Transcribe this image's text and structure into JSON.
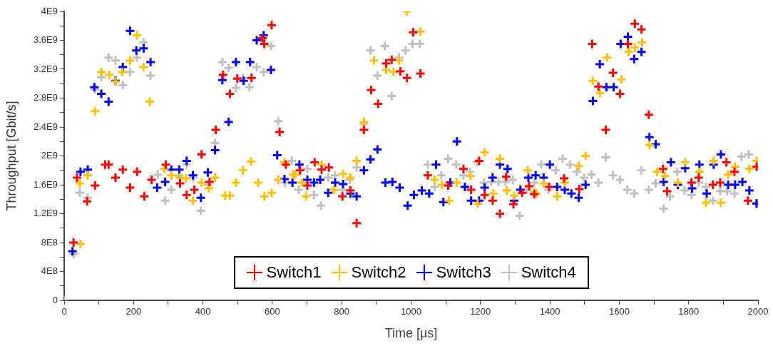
{
  "chart_data": {
    "type": "scatter",
    "xlabel": "Time [µs]",
    "ylabel": "Throughput [Gbit/s]",
    "marker": "cross",
    "grid": false,
    "legend": "bottom",
    "xlim": [
      0,
      2000
    ],
    "xticks": [
      0,
      {
        "value": 100,
        "label": null
      },
      200,
      {
        "value": 300,
        "label": null
      },
      400,
      {
        "value": 500,
        "label": null
      },
      600,
      {
        "value": 700,
        "label": null
      },
      800,
      {
        "value": 900,
        "label": null
      },
      1000,
      {
        "value": 1100,
        "label": null
      },
      1200,
      {
        "value": 1300,
        "label": null
      },
      1400,
      {
        "value": 1500,
        "label": null
      },
      1600,
      {
        "value": 1700,
        "label": null
      },
      1800,
      {
        "value": 1900,
        "label": null
      },
      2000
    ],
    "ylim": [
      0,
      4000000000
    ],
    "yticks": [
      0,
      {
        "value": 200000000,
        "label": null
      },
      {
        "value": 400000000,
        "label": "4E8"
      },
      {
        "value": 600000000,
        "label": null
      },
      {
        "value": 800000000,
        "label": "8E8"
      },
      {
        "value": 1000000000,
        "label": null
      },
      {
        "value": 1200000000,
        "label": "1.2E9"
      },
      {
        "value": 1400000000,
        "label": null
      },
      {
        "value": 1600000000,
        "label": "1.6E9"
      },
      {
        "value": 1800000000,
        "label": null
      },
      {
        "value": 2000000000,
        "label": "2E9"
      },
      {
        "value": 2200000000,
        "label": null
      },
      {
        "value": 2400000000,
        "label": "2.4E9"
      },
      {
        "value": 2600000000,
        "label": null
      },
      {
        "value": 2800000000,
        "label": "2.8E9"
      },
      {
        "value": 3000000000,
        "label": null
      },
      {
        "value": 3200000000,
        "label": "3.2E9"
      },
      {
        "value": 3400000000,
        "label": null
      },
      {
        "value": 3600000000,
        "label": "3.6E9"
      },
      {
        "value": 3800000000,
        "label": null
      },
      {
        "value": 4000000000,
        "label": "4E9"
      }
    ],
    "series": [
      {
        "name": "Switch1",
        "color": "#ff0000",
        "x": [
          27,
          37,
          66,
          89,
          118,
          128,
          148,
          169,
          190,
          210,
          231,
          252,
          293,
          334,
          353,
          375,
          396,
          419,
          437,
          458,
          478,
          499,
          540,
          571,
          577,
          598,
          621,
          639,
          680,
          701,
          722,
          742,
          763,
          802,
          825,
          843,
          864,
          885,
          905,
          928,
          944,
          969,
          988,
          1006,
          1027,
          1048,
          1107,
          1151,
          1173,
          1196,
          1212,
          1235,
          1256,
          1274,
          1295,
          1320,
          1340,
          1355,
          1398,
          1441,
          1485,
          1522,
          1540,
          1561,
          1582,
          1602,
          1625,
          1645,
          1664,
          1685,
          1726,
          1738,
          1808,
          1829,
          1870,
          1891,
          1909,
          1932,
          1971,
          1996
        ],
        "values": [
          800000000.0,
          1700000000.0,
          1370000000.0,
          1590000000.0,
          1880000000.0,
          1880000000.0,
          1700000000.0,
          1810000000.0,
          1560000000.0,
          1780000000.0,
          1440000000.0,
          1670000000.0,
          1880000000.0,
          1620000000.0,
          1460000000.0,
          1530000000.0,
          2020000000.0,
          1640000000.0,
          2360000000.0,
          3120000000.0,
          2860000000.0,
          3070000000.0,
          3080000000.0,
          3630000000.0,
          3550000000.0,
          3810000000.0,
          2330000000.0,
          1880000000.0,
          1800000000.0,
          1590000000.0,
          1910000000.0,
          1810000000.0,
          1840000000.0,
          1440000000.0,
          1520000000.0,
          1070000000.0,
          2360000000.0,
          2910000000.0,
          2720000000.0,
          3280000000.0,
          3330000000.0,
          3170000000.0,
          3080000000.0,
          3710000000.0,
          3140000000.0,
          1730000000.0,
          1590000000.0,
          1820000000.0,
          1530000000.0,
          1930000000.0,
          1460000000.0,
          1380000000.0,
          1200000000.0,
          1710000000.0,
          1330000000.0,
          1490000000.0,
          1580000000.0,
          1470000000.0,
          1570000000.0,
          1690000000.0,
          1540000000.0,
          3550000000.0,
          2960000000.0,
          2360000000.0,
          3150000000.0,
          2860000000.0,
          3550000000.0,
          3830000000.0,
          3750000000.0,
          2570000000.0,
          1820000000.0,
          1510000000.0,
          1630000000.0,
          1700000000.0,
          1600000000.0,
          1630000000.0,
          1910000000.0,
          1780000000.0,
          1380000000.0,
          1850000000.0
        ]
      },
      {
        "name": "Switch2",
        "color": "#ffc000",
        "x": [
          45,
          47,
          68,
          89,
          107,
          130,
          148,
          167,
          190,
          210,
          229,
          247,
          289,
          309,
          334,
          351,
          371,
          396,
          417,
          435,
          464,
          478,
          495,
          515,
          538,
          559,
          577,
          598,
          617,
          635,
          660,
          666,
          685,
          697,
          742,
          777,
          804,
          825,
          843,
          864,
          893,
          928,
          949,
          965,
          988,
          1027,
          1068,
          1089,
          1109,
          1132,
          1171,
          1192,
          1212,
          1237,
          1256,
          1276,
          1297,
          1336,
          1355,
          1361,
          1382,
          1421,
          1443,
          1483,
          1503,
          1524,
          1544,
          1565,
          1606,
          1627,
          1645,
          1666,
          1687,
          1709,
          1732,
          1769,
          1790,
          1831,
          1850,
          1872,
          1893,
          1914,
          1934,
          1975,
          1996
        ],
        "values": [
          1620000000.0,
          780000000.0,
          1730000000.0,
          2620000000.0,
          3160000000.0,
          3120000000.0,
          3030000000.0,
          3160000000.0,
          3320000000.0,
          3670000000.0,
          3230000000.0,
          2750000000.0,
          1820000000.0,
          1730000000.0,
          1700000000.0,
          1690000000.0,
          1380000000.0,
          1630000000.0,
          1550000000.0,
          1700000000.0,
          1450000000.0,
          1450000000.0,
          1630000000.0,
          1800000000.0,
          1920000000.0,
          1630000000.0,
          1440000000.0,
          1490000000.0,
          1670000000.0,
          1910000000.0,
          1740000000.0,
          1740000000.0,
          1630000000.0,
          1440000000.0,
          1880000000.0,
          1530000000.0,
          1750000000.0,
          1700000000.0,
          1930000000.0,
          2470000000.0,
          3320000000.0,
          3190000000.0,
          3160000000.0,
          3320000000.0,
          4000000000.0,
          3720000000.0,
          1670000000.0,
          1600000000.0,
          1380000000.0,
          1630000000.0,
          1720000000.0,
          1340000000.0,
          2050000000.0,
          1480000000.0,
          1960000000.0,
          1520000000.0,
          1450000000.0,
          1800000000.0,
          1500000000.0,
          1480000000.0,
          1620000000.0,
          1440000000.0,
          1630000000.0,
          1860000000.0,
          2000000000.0,
          3040000000.0,
          2870000000.0,
          3360000000.0,
          3060000000.0,
          3440000000.0,
          3500000000.0,
          3570000000.0,
          2150000000.0,
          1780000000.0,
          1720000000.0,
          1630000000.0,
          1910000000.0,
          1780000000.0,
          1350000000.0,
          1930000000.0,
          1350000000.0,
          1740000000.0,
          1850000000.0,
          1820000000.0,
          1930000000.0
        ]
      },
      {
        "name": "Switch3",
        "color": "#0000ff",
        "x": [
          24,
          47,
          68,
          87,
          107,
          128,
          148,
          169,
          190,
          208,
          229,
          249,
          268,
          291,
          309,
          332,
          353,
          371,
          394,
          414,
          435,
          456,
          474,
          495,
          517,
          536,
          555,
          575,
          596,
          614,
          635,
          658,
          678,
          701,
          720,
          738,
          761,
          781,
          804,
          825,
          843,
          864,
          883,
          903,
          926,
          946,
          967,
          990,
          1008,
          1031,
          1052,
          1072,
          1093,
          1113,
          1132,
          1155,
          1173,
          1196,
          1212,
          1235,
          1256,
          1278,
          1297,
          1315,
          1338,
          1359,
          1382,
          1400,
          1421,
          1443,
          1462,
          1483,
          1503,
          1524,
          1544,
          1563,
          1584,
          1604,
          1625,
          1643,
          1664,
          1687,
          1705,
          1728,
          1749,
          1769,
          1790,
          1810,
          1831,
          1852,
          1872,
          1893,
          1914,
          1934,
          1955,
          1975,
          1996
        ],
        "values": [
          680000000.0,
          1780000000.0,
          1810000000.0,
          2950000000.0,
          2860000000.0,
          2750000000.0,
          3040000000.0,
          3230000000.0,
          3730000000.0,
          3460000000.0,
          3490000000.0,
          3300000000.0,
          1560000000.0,
          1640000000.0,
          1810000000.0,
          1810000000.0,
          1930000000.0,
          1730000000.0,
          1420000000.0,
          1770000000.0,
          2080000000.0,
          3050000000.0,
          2470000000.0,
          3300000000.0,
          3040000000.0,
          3300000000.0,
          3600000000.0,
          3670000000.0,
          3190000000.0,
          2010000000.0,
          1680000000.0,
          1630000000.0,
          1880000000.0,
          1670000000.0,
          1630000000.0,
          1670000000.0,
          1490000000.0,
          1630000000.0,
          1610000000.0,
          1480000000.0,
          1440000000.0,
          1800000000.0,
          1950000000.0,
          2090000000.0,
          1630000000.0,
          1640000000.0,
          1560000000.0,
          1310000000.0,
          1460000000.0,
          1520000000.0,
          1480000000.0,
          1880000000.0,
          1360000000.0,
          1630000000.0,
          2200000000.0,
          1570000000.0,
          1380000000.0,
          1380000000.0,
          1560000000.0,
          1700000000.0,
          1880000000.0,
          1820000000.0,
          1380000000.0,
          1530000000.0,
          1700000000.0,
          1730000000.0,
          1700000000.0,
          1880000000.0,
          1570000000.0,
          1530000000.0,
          1480000000.0,
          1420000000.0,
          1600000000.0,
          2760000000.0,
          3270000000.0,
          2950000000.0,
          2950000000.0,
          3550000000.0,
          3650000000.0,
          3340000000.0,
          3440000000.0,
          2260000000.0,
          2160000000.0,
          1640000000.0,
          1910000000.0,
          1600000000.0,
          1830000000.0,
          1550000000.0,
          1880000000.0,
          1480000000.0,
          1880000000.0,
          2020000000.0,
          1600000000.0,
          1600000000.0,
          1640000000.0,
          1520000000.0,
          1340000000.0
        ]
      },
      {
        "name": "Switch4",
        "color": "#c0c0c0",
        "x": [
          0,
          27,
          45,
          68,
          89,
          107,
          128,
          148,
          169,
          190,
          210,
          229,
          249,
          270,
          291,
          309,
          332,
          353,
          373,
          394,
          414,
          435,
          456,
          474,
          495,
          515,
          534,
          555,
          575,
          596,
          617,
          637,
          656,
          676,
          701,
          720,
          740,
          761,
          781,
          802,
          823,
          843,
          864,
          883,
          903,
          924,
          944,
          965,
          984,
          1004,
          1025,
          1048,
          1068,
          1087,
          1107,
          1130,
          1151,
          1169,
          1190,
          1210,
          1231,
          1252,
          1272,
          1293,
          1313,
          1334,
          1355,
          1375,
          1396,
          1417,
          1437,
          1458,
          1478,
          1499,
          1520,
          1540,
          1561,
          1582,
          1602,
          1623,
          1643,
          1664,
          1685,
          1705,
          1728,
          1746,
          1767,
          1788,
          1808,
          1829,
          1850,
          1870,
          1891,
          1911,
          1932,
          1952,
          1973,
          1994
        ],
        "values": [
          0,
          640000000.0,
          1490000000.0,
          1420000000.0,
          2920000000.0,
          3090000000.0,
          3360000000.0,
          3320000000.0,
          2980000000.0,
          3160000000.0,
          3360000000.0,
          3570000000.0,
          3110000000.0,
          1740000000.0,
          1380000000.0,
          1530000000.0,
          1730000000.0,
          1880000000.0,
          1700000000.0,
          1240000000.0,
          1600000000.0,
          2180000000.0,
          3300000000.0,
          3220000000.0,
          2940000000.0,
          3080000000.0,
          2950000000.0,
          3230000000.0,
          3160000000.0,
          3520000000.0,
          2480000000.0,
          1630000000.0,
          1930000000.0,
          1530000000.0,
          1820000000.0,
          1460000000.0,
          1310000000.0,
          1700000000.0,
          1730000000.0,
          1530000000.0,
          1670000000.0,
          1840000000.0,
          2440000000.0,
          3460000000.0,
          3110000000.0,
          3520000000.0,
          2830000000.0,
          3360000000.0,
          3460000000.0,
          3550000000.0,
          3550000000.0,
          1880000000.0,
          1570000000.0,
          1730000000.0,
          1960000000.0,
          1880000000.0,
          1730000000.0,
          1780000000.0,
          1910000000.0,
          1630000000.0,
          1640000000.0,
          1640000000.0,
          1640000000.0,
          1670000000.0,
          1170000000.0,
          1530000000.0,
          1630000000.0,
          1880000000.0,
          1530000000.0,
          1800000000.0,
          1960000000.0,
          1880000000.0,
          1780000000.0,
          1700000000.0,
          1740000000.0,
          1630000000.0,
          1980000000.0,
          1730000000.0,
          1670000000.0,
          1530000000.0,
          1480000000.0,
          1800000000.0,
          1530000000.0,
          1620000000.0,
          1270000000.0,
          1440000000.0,
          1780000000.0,
          1520000000.0,
          1460000000.0,
          1630000000.0,
          1570000000.0,
          1380000000.0,
          1510000000.0,
          1510000000.0,
          1480000000.0,
          1990000000.0,
          2020000000.0,
          1340000000.0
        ]
      }
    ]
  }
}
